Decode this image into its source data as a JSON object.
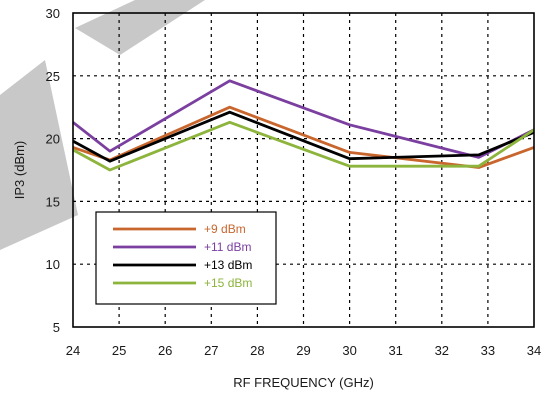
{
  "chart_data": {
    "type": "line",
    "title": "",
    "xlabel": "RF FREQUENCY (GHz)",
    "ylabel": "IP3 (dBm)",
    "xlim": [
      24,
      34
    ],
    "ylim": [
      5,
      30
    ],
    "xticks": [
      24,
      25,
      26,
      27,
      28,
      29,
      30,
      31,
      32,
      33,
      34
    ],
    "yticks": [
      5,
      10,
      15,
      20,
      25,
      30
    ],
    "grid": true,
    "legend_position": "bottom-left",
    "series": [
      {
        "name": "+9 dBm",
        "color": "#c8662e",
        "x": [
          24,
          24.8,
          27.4,
          30,
          32.8,
          34
        ],
        "y": [
          19.3,
          18.3,
          22.5,
          18.9,
          17.7,
          19.3
        ]
      },
      {
        "name": "+11 dBm",
        "color": "#7b3fa0",
        "x": [
          24,
          24.8,
          27.4,
          30,
          32.8,
          34
        ],
        "y": [
          21.3,
          19,
          24.6,
          21.1,
          18.5,
          20.7
        ]
      },
      {
        "name": "+13 dBm",
        "color": "#000000",
        "x": [
          24,
          24.8,
          27.4,
          30,
          32.8,
          34
        ],
        "y": [
          19.8,
          18.2,
          22.1,
          18.4,
          18.7,
          20.5
        ]
      },
      {
        "name": "+15 dBm",
        "color": "#8db43c",
        "x": [
          24,
          24.8,
          27.4,
          30,
          32.8,
          34
        ],
        "y": [
          19.1,
          17.5,
          21.3,
          17.8,
          17.8,
          20.7
        ]
      }
    ]
  }
}
